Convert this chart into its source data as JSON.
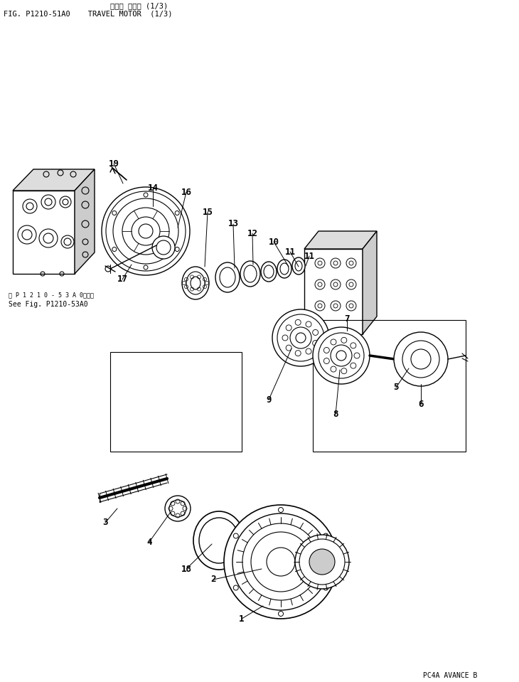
{
  "title_line1": "スコウ モータ (1/3)",
  "title_line2": "FIG. P1210-51A0    TRAVEL MOTOR  (1/3)",
  "footer": "PC4A AVANCE B",
  "bg": "#ffffff",
  "ref1": "縮 P 1 2 1 0 - 5 3 A 0図参照",
  "ref2": "See Fig. P1210-53A0"
}
